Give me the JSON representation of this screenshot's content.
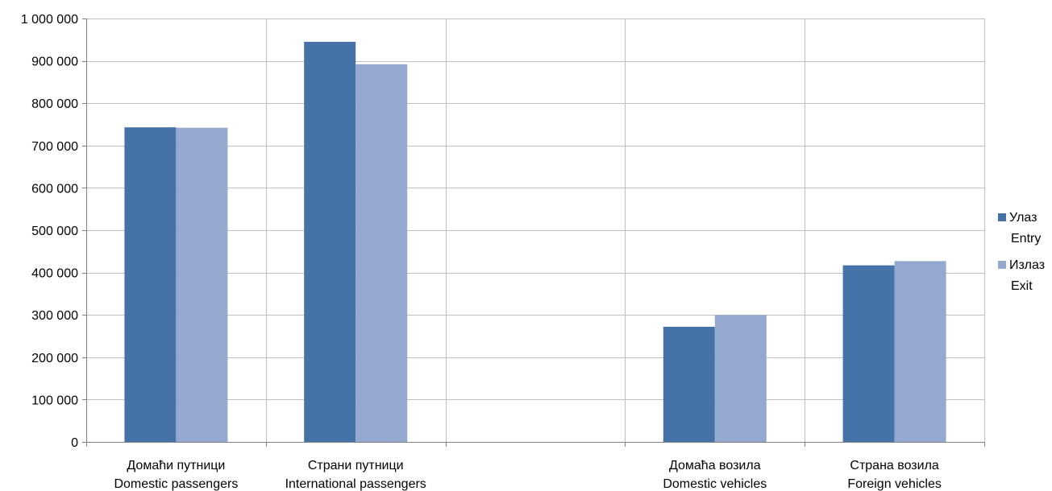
{
  "chart_data": {
    "type": "bar",
    "categories": [
      {
        "line1": "Домаћи путници",
        "line2": "Domestic passengers"
      },
      {
        "line1": "Страни путници",
        "line2": "International passengers"
      },
      {
        "line1": "",
        "line2": ""
      },
      {
        "line1": "Домаћа возила",
        "line2": "Domestic vehicles"
      },
      {
        "line1": "Страна возила",
        "line2": "Foreign vehicles"
      }
    ],
    "series": [
      {
        "name": "Улаз",
        "name2": "Entry",
        "color": "#4572a7",
        "values": [
          743000,
          945000,
          null,
          272000,
          417000
        ]
      },
      {
        "name": "Излаз",
        "name2": "Exit",
        "color": "#95a9d0",
        "values": [
          742000,
          892000,
          null,
          300000,
          427000
        ]
      }
    ],
    "ylim": [
      0,
      1000000
    ],
    "yticks": [
      0,
      100000,
      200000,
      300000,
      400000,
      500000,
      600000,
      700000,
      800000,
      900000,
      1000000
    ],
    "ytick_labels": [
      "0",
      "100 000",
      "200 000",
      "300 000",
      "400 000",
      "500 000",
      "600 000",
      "700 000",
      "800 000",
      "900 000",
      "1 000 000"
    ],
    "grid": true,
    "legend_position": "right",
    "title": "",
    "xlabel": "",
    "ylabel": ""
  }
}
